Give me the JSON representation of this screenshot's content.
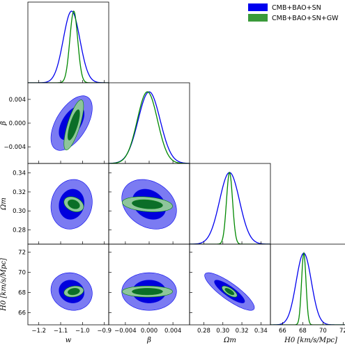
{
  "chart_data": {
    "type": "triangle",
    "legend_position": "top-right",
    "grid": false,
    "series": [
      {
        "name": "CMB+BAO+SN",
        "color": "#0000ee",
        "fill_inner": "#0000dd",
        "fill_outer": "#7b7bf2"
      },
      {
        "name": "CMB+BAO+SN+GW",
        "color": "#008800",
        "fill_inner": "#0b6e28",
        "fill_outer": "#8ec59b"
      }
    ],
    "parameters": [
      {
        "name": "w",
        "label": "w",
        "lim": [
          -1.25,
          -0.88
        ],
        "ticks": [
          -1.2,
          -1.1,
          -1.0,
          -0.9
        ],
        "tick_labels": [
          "−1.2",
          "−1.1",
          "−1.0",
          "−0.9"
        ]
      },
      {
        "name": "beta",
        "label": "β",
        "lim": [
          -0.0068,
          0.0068
        ],
        "ticks": [
          -0.004,
          0.0,
          0.004
        ],
        "tick_labels": [
          "−0.004",
          "0.000",
          "0.004"
        ]
      },
      {
        "name": "Omega_m",
        "label": "Ωm",
        "lim": [
          0.265,
          0.35
        ],
        "ticks": [
          0.28,
          0.3,
          0.32,
          0.34
        ],
        "tick_labels": [
          "0.28",
          "0.30",
          "0.32",
          "0.34"
        ]
      },
      {
        "name": "H0",
        "label": "H0 [km/s/Mpc]",
        "lim": [
          64.8,
          72.8
        ],
        "ticks": [
          66,
          68,
          70,
          72
        ],
        "tick_labels": [
          "66",
          "68",
          "70",
          "72"
        ]
      }
    ],
    "row_y_tick_labels": {
      "beta": [
        "0.004",
        "0.000",
        "−0.004"
      ],
      "Omega_m": [
        "0.34",
        "0.32",
        "0.30",
        "0.28"
      ],
      "H0": [
        "72",
        "70",
        "68",
        "66"
      ]
    },
    "posteriors": {
      "CMB+BAO+SN": {
        "mean": {
          "w": -1.05,
          "beta": 0.0,
          "Omega_m": 0.307,
          "H0": 68.1
        },
        "sigma": {
          "w": 0.038,
          "beta": 0.00185,
          "Omega_m": 0.0105,
          "H0": 0.75
        },
        "corr": {
          "w_beta": 0.55,
          "w_Omega_m": 0.1,
          "w_H0": -0.1,
          "beta_Omega_m": -0.25,
          "beta_H0": 0.0,
          "Omega_m_H0": -0.85
        }
      },
      "CMB+BAO+SN+GW": {
        "mean": {
          "w": -1.04,
          "beta": -0.0003,
          "Omega_m": 0.307,
          "H0": 68.1
        },
        "sigma": {
          "w": 0.018,
          "beta": 0.0017,
          "Omega_m": 0.0032,
          "H0": 0.22
        },
        "corr": {
          "w_beta": 0.75,
          "w_Omega_m": -0.3,
          "w_H0": 0.2,
          "beta_Omega_m": -0.25,
          "beta_H0": 0.0,
          "Omega_m_H0": -0.7
        }
      }
    }
  }
}
